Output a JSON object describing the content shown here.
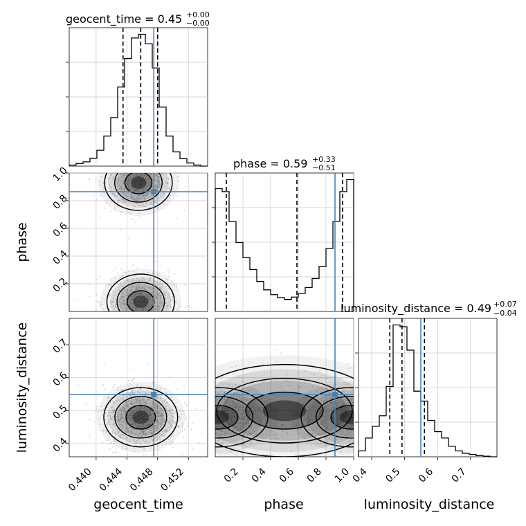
{
  "colors": {
    "truth": "#4682b4",
    "hist": "#000000",
    "grid": "#c8c8c8",
    "scatter": "#9a9a9a"
  },
  "titles": {
    "geocent_time": {
      "label": "geocent_time = 0.45",
      "sup": "+0.00",
      "sub": "−0.00"
    },
    "phase": {
      "label": "phase = 0.59",
      "sup": "+0.33",
      "sub": "−0.51"
    },
    "luminosity_distance": {
      "label": "luminosity_distance = 0.49",
      "sup": "+0.07",
      "sub": "−0.04"
    }
  },
  "axis_labels": {
    "geocent_time": "geocent_time",
    "phase": "phase",
    "luminosity_distance": "luminosity_distance"
  },
  "ticks": {
    "geocent_time": [
      "0.440",
      "0.444",
      "0.448",
      "0.452"
    ],
    "phase": [
      "0.2",
      "0.4",
      "0.6",
      "0.8",
      "1.0"
    ],
    "luminosity_distance": [
      "0.4",
      "0.5",
      "0.6",
      "0.7"
    ]
  },
  "chart_data": {
    "type": "corner",
    "parameters": [
      "geocent_time",
      "phase",
      "luminosity_distance"
    ],
    "ranges": {
      "geocent_time": [
        0.4365,
        0.4545
      ],
      "phase": [
        0.0,
        1.0
      ],
      "luminosity_distance": [
        0.36,
        0.78
      ]
    },
    "truths": {
      "geocent_time": 0.4475,
      "phase": 0.865,
      "luminosity_distance": 0.549
    },
    "quantiles": {
      "geocent_time": [
        0.4435,
        0.4458,
        0.448
      ],
      "phase": [
        0.08,
        0.59,
        0.92
      ],
      "luminosity_distance": [
        0.455,
        0.492,
        0.56
      ]
    },
    "histograms": {
      "geocent_time": {
        "edges": [
          0.4365,
          0.4374,
          0.4383,
          0.4392,
          0.4401,
          0.441,
          0.4419,
          0.4428,
          0.4437,
          0.4446,
          0.4455,
          0.4464,
          0.4473,
          0.4482,
          0.4491,
          0.45,
          0.4509,
          0.4518,
          0.4527,
          0.4536,
          0.4545
        ],
        "counts": [
          2,
          5,
          8,
          15,
          30,
          57,
          92,
          150,
          204,
          243,
          250,
          232,
          186,
          112,
          57,
          27,
          14,
          6,
          2,
          0
        ]
      },
      "phase": {
        "edges": [
          0.0,
          0.05,
          0.1,
          0.15,
          0.2,
          0.25,
          0.3,
          0.35,
          0.4,
          0.45,
          0.5,
          0.55,
          0.6,
          0.65,
          0.7,
          0.75,
          0.8,
          0.85,
          0.9,
          0.95,
          1.0
        ],
        "counts": [
          205,
          200,
          150,
          115,
          90,
          70,
          50,
          36,
          28,
          23,
          20,
          24,
          30,
          40,
          55,
          75,
          105,
          150,
          200,
          220
        ]
      },
      "luminosity_distance": {
        "edges": [
          0.36,
          0.381,
          0.402,
          0.423,
          0.444,
          0.465,
          0.486,
          0.507,
          0.528,
          0.549,
          0.57,
          0.591,
          0.612,
          0.633,
          0.654,
          0.675,
          0.696,
          0.717,
          0.738,
          0.759,
          0.78
        ],
        "counts": [
          10,
          32,
          52,
          70,
          120,
          225,
          222,
          182,
          112,
          95,
          62,
          43,
          32,
          18,
          10,
          6,
          4,
          2,
          1,
          0
        ]
      }
    },
    "contour_peaks": {
      "phase_vs_geocent_time": [
        [
          0.4455,
          0.88
        ],
        [
          0.4458,
          0.07
        ]
      ],
      "luminosity_distance_vs_geocent_time": [
        [
          0.4458,
          0.48
        ]
      ],
      "luminosity_distance_vs_phase": [
        [
          0.0,
          0.48
        ],
        [
          1.0,
          0.48
        ]
      ]
    }
  }
}
